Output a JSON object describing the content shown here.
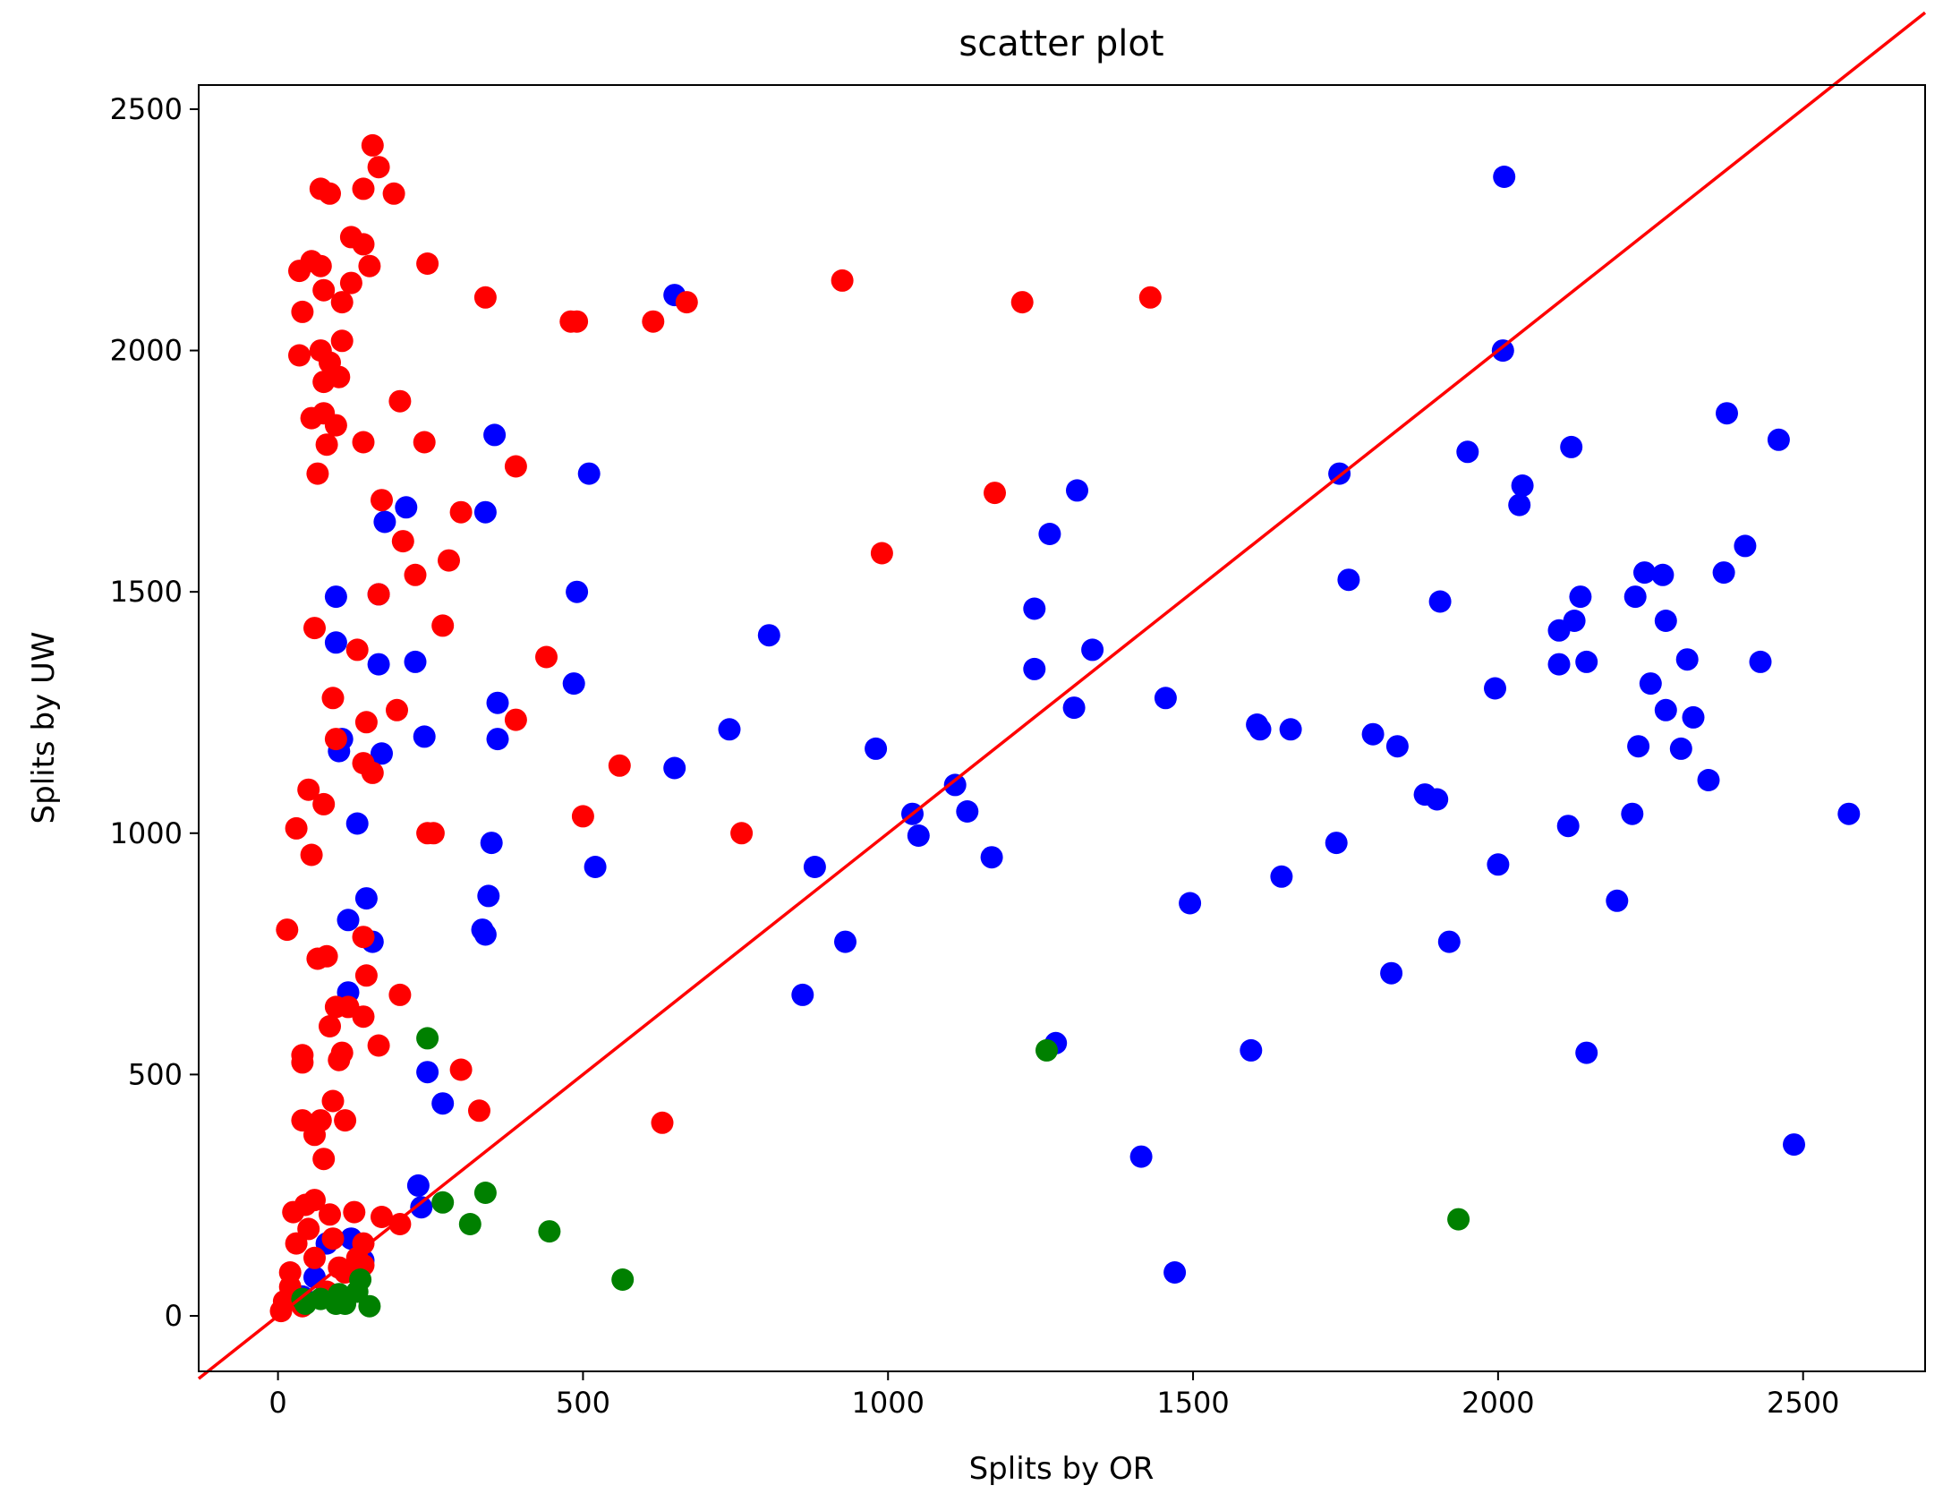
{
  "chart_data": {
    "type": "scatter",
    "title": "scatter plot",
    "xlabel": "Splits by OR",
    "ylabel": "Splits by UW",
    "xlim": [
      -130,
      2700
    ],
    "ylim": [
      -115,
      2550
    ],
    "x_ticks": [
      0,
      500,
      1000,
      1500,
      2000,
      2500
    ],
    "y_ticks": [
      0,
      500,
      1000,
      1500,
      2000,
      2500
    ],
    "grid": false,
    "reference_line": {
      "from": [
        -130,
        -130
      ],
      "to": [
        2700,
        2700
      ],
      "color": "#ff0000"
    },
    "series": [
      {
        "color": "#0000ff",
        "points": [
          [
            2010,
            2360
          ],
          [
            2008,
            2000
          ],
          [
            650,
            2115
          ],
          [
            355,
            1825
          ],
          [
            340,
            1665
          ],
          [
            210,
            1675
          ],
          [
            175,
            1645
          ],
          [
            510,
            1745
          ],
          [
            1310,
            1710
          ],
          [
            1265,
            1620
          ],
          [
            1740,
            1745
          ],
          [
            1950,
            1790
          ],
          [
            2120,
            1800
          ],
          [
            2040,
            1720
          ],
          [
            2035,
            1680
          ],
          [
            2375,
            1870
          ],
          [
            2460,
            1815
          ],
          [
            2405,
            1595
          ],
          [
            2370,
            1540
          ],
          [
            2240,
            1540
          ],
          [
            2270,
            1535
          ],
          [
            2135,
            1490
          ],
          [
            2225,
            1490
          ],
          [
            2275,
            1440
          ],
          [
            2125,
            1440
          ],
          [
            2100,
            1420
          ],
          [
            2310,
            1360
          ],
          [
            2145,
            1355
          ],
          [
            2100,
            1350
          ],
          [
            2430,
            1355
          ],
          [
            2250,
            1310
          ],
          [
            2275,
            1255
          ],
          [
            2320,
            1240
          ],
          [
            2300,
            1175
          ],
          [
            2230,
            1180
          ],
          [
            2345,
            1110
          ],
          [
            2575,
            1040
          ],
          [
            2220,
            1040
          ],
          [
            2115,
            1015
          ],
          [
            1995,
            1300
          ],
          [
            1905,
            1480
          ],
          [
            1755,
            1525
          ],
          [
            1795,
            1205
          ],
          [
            1835,
            1180
          ],
          [
            1880,
            1080
          ],
          [
            1900,
            1070
          ],
          [
            1605,
            1225
          ],
          [
            1610,
            1215
          ],
          [
            1660,
            1215
          ],
          [
            1455,
            1280
          ],
          [
            1335,
            1380
          ],
          [
            1240,
            1465
          ],
          [
            1240,
            1340
          ],
          [
            1305,
            1260
          ],
          [
            1110,
            1100
          ],
          [
            1040,
            1040
          ],
          [
            1050,
            995
          ],
          [
            1130,
            1045
          ],
          [
            1170,
            950
          ],
          [
            980,
            1175
          ],
          [
            805,
            1410
          ],
          [
            740,
            1215
          ],
          [
            650,
            1135
          ],
          [
            880,
            930
          ],
          [
            930,
            775
          ],
          [
            860,
            665
          ],
          [
            1495,
            855
          ],
          [
            1645,
            910
          ],
          [
            1735,
            980
          ],
          [
            2000,
            935
          ],
          [
            2195,
            860
          ],
          [
            1825,
            710
          ],
          [
            1920,
            775
          ],
          [
            1595,
            550
          ],
          [
            1275,
            565
          ],
          [
            2145,
            545
          ],
          [
            2485,
            355
          ],
          [
            1415,
            330
          ],
          [
            1470,
            90
          ],
          [
            490,
            1500
          ],
          [
            485,
            1310
          ],
          [
            520,
            930
          ],
          [
            360,
            1270
          ],
          [
            360,
            1195
          ],
          [
            240,
            1200
          ],
          [
            225,
            1355
          ],
          [
            165,
            1495
          ],
          [
            165,
            1350
          ],
          [
            170,
            1165
          ],
          [
            95,
            1490
          ],
          [
            95,
            1395
          ],
          [
            100,
            1170
          ],
          [
            105,
            1195
          ],
          [
            130,
            1020
          ],
          [
            145,
            865
          ],
          [
            115,
            820
          ],
          [
            155,
            775
          ],
          [
            350,
            980
          ],
          [
            345,
            870
          ],
          [
            335,
            800
          ],
          [
            340,
            790
          ],
          [
            115,
            670
          ],
          [
            245,
            505
          ],
          [
            270,
            440
          ],
          [
            230,
            270
          ],
          [
            235,
            225
          ],
          [
            140,
            115
          ],
          [
            120,
            160
          ],
          [
            80,
            150
          ],
          [
            60,
            80
          ],
          [
            40,
            40
          ]
        ]
      },
      {
        "color": "#ff0000",
        "points": [
          [
            155,
            2425
          ],
          [
            165,
            2380
          ],
          [
            70,
            2335
          ],
          [
            85,
            2325
          ],
          [
            140,
            2335
          ],
          [
            190,
            2325
          ],
          [
            120,
            2235
          ],
          [
            140,
            2220
          ],
          [
            55,
            2185
          ],
          [
            35,
            2165
          ],
          [
            70,
            2175
          ],
          [
            150,
            2175
          ],
          [
            245,
            2180
          ],
          [
            120,
            2140
          ],
          [
            75,
            2125
          ],
          [
            40,
            2080
          ],
          [
            105,
            2100
          ],
          [
            340,
            2110
          ],
          [
            480,
            2060
          ],
          [
            490,
            2060
          ],
          [
            615,
            2060
          ],
          [
            670,
            2100
          ],
          [
            925,
            2145
          ],
          [
            1220,
            2100
          ],
          [
            1430,
            2110
          ],
          [
            105,
            2020
          ],
          [
            35,
            1990
          ],
          [
            70,
            2000
          ],
          [
            85,
            1975
          ],
          [
            75,
            1935
          ],
          [
            100,
            1945
          ],
          [
            200,
            1895
          ],
          [
            55,
            1860
          ],
          [
            75,
            1870
          ],
          [
            95,
            1845
          ],
          [
            80,
            1805
          ],
          [
            140,
            1810
          ],
          [
            240,
            1810
          ],
          [
            65,
            1745
          ],
          [
            390,
            1760
          ],
          [
            1175,
            1705
          ],
          [
            170,
            1690
          ],
          [
            300,
            1665
          ],
          [
            205,
            1605
          ],
          [
            990,
            1580
          ],
          [
            280,
            1565
          ],
          [
            225,
            1535
          ],
          [
            165,
            1495
          ],
          [
            60,
            1425
          ],
          [
            270,
            1430
          ],
          [
            440,
            1365
          ],
          [
            130,
            1380
          ],
          [
            90,
            1280
          ],
          [
            195,
            1255
          ],
          [
            145,
            1230
          ],
          [
            390,
            1235
          ],
          [
            95,
            1195
          ],
          [
            140,
            1145
          ],
          [
            155,
            1125
          ],
          [
            560,
            1140
          ],
          [
            50,
            1090
          ],
          [
            75,
            1060
          ],
          [
            500,
            1035
          ],
          [
            760,
            1000
          ],
          [
            245,
            1000
          ],
          [
            255,
            1000
          ],
          [
            30,
            1010
          ],
          [
            55,
            955
          ],
          [
            15,
            800
          ],
          [
            65,
            740
          ],
          [
            80,
            745
          ],
          [
            140,
            785
          ],
          [
            145,
            705
          ],
          [
            200,
            665
          ],
          [
            95,
            640
          ],
          [
            115,
            640
          ],
          [
            85,
            600
          ],
          [
            140,
            620
          ],
          [
            165,
            560
          ],
          [
            40,
            540
          ],
          [
            40,
            525
          ],
          [
            105,
            545
          ],
          [
            100,
            530
          ],
          [
            300,
            510
          ],
          [
            90,
            445
          ],
          [
            330,
            425
          ],
          [
            40,
            405
          ],
          [
            60,
            375
          ],
          [
            70,
            405
          ],
          [
            110,
            405
          ],
          [
            75,
            325
          ],
          [
            630,
            400
          ],
          [
            25,
            215
          ],
          [
            45,
            230
          ],
          [
            60,
            240
          ],
          [
            85,
            210
          ],
          [
            125,
            215
          ],
          [
            170,
            205
          ],
          [
            200,
            190
          ],
          [
            50,
            180
          ],
          [
            90,
            160
          ],
          [
            140,
            150
          ],
          [
            30,
            150
          ],
          [
            20,
            90
          ],
          [
            60,
            120
          ],
          [
            100,
            100
          ],
          [
            130,
            120
          ],
          [
            10,
            30
          ],
          [
            20,
            60
          ],
          [
            40,
            20
          ],
          [
            80,
            50
          ],
          [
            110,
            90
          ],
          [
            140,
            105
          ],
          [
            5,
            10
          ]
        ]
      },
      {
        "color": "#008000",
        "points": [
          [
            245,
            575
          ],
          [
            1260,
            550
          ],
          [
            340,
            255
          ],
          [
            270,
            235
          ],
          [
            315,
            190
          ],
          [
            445,
            175
          ],
          [
            1935,
            200
          ],
          [
            565,
            75
          ],
          [
            135,
            75
          ],
          [
            130,
            50
          ],
          [
            150,
            20
          ],
          [
            95,
            25
          ],
          [
            110,
            25
          ],
          [
            45,
            25
          ],
          [
            40,
            35
          ],
          [
            70,
            35
          ],
          [
            100,
            45
          ]
        ]
      }
    ]
  }
}
